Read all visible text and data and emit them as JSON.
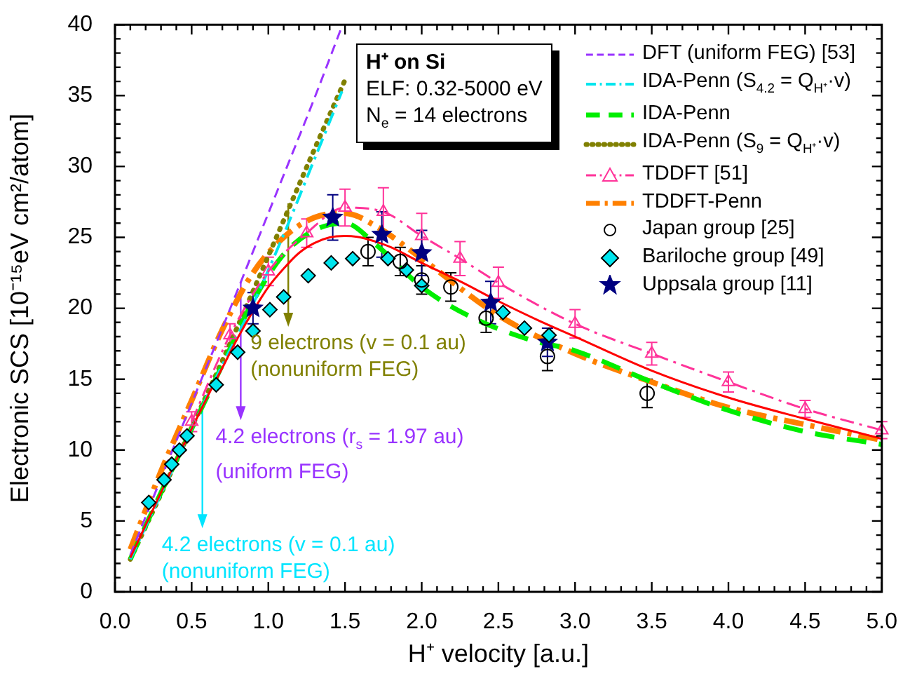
{
  "chart_data": {
    "type": "line",
    "xlabel": "H⁺ velocity [a.u.]",
    "ylabel": "Electronic SCS [10⁻¹⁵eV cm²/atom]",
    "xlim": [
      0,
      5
    ],
    "ylim": [
      0,
      40
    ],
    "xticks": [
      {
        "value": 0,
        "label": "0.0"
      },
      {
        "value": 0.5,
        "label": "0.5"
      },
      {
        "value": 1,
        "label": "1.0"
      },
      {
        "value": 1.5,
        "label": "1.5"
      },
      {
        "value": 2,
        "label": "2.0"
      },
      {
        "value": 2.5,
        "label": "2.5"
      },
      {
        "value": 3,
        "label": "3.0"
      },
      {
        "value": 3.5,
        "label": "3.5"
      },
      {
        "value": 4,
        "label": "4.0"
      },
      {
        "value": 4.5,
        "label": "4.5"
      },
      {
        "value": 5,
        "label": "5.0"
      }
    ],
    "yticks": [
      0,
      5,
      10,
      15,
      20,
      25,
      30,
      35,
      40
    ],
    "legend": "top right",
    "series": [
      {
        "color": "#ff0000",
        "line_style": "solid",
        "x": [
          0.1,
          0.2,
          0.3,
          0.4,
          0.5,
          0.6,
          0.7,
          0.8,
          0.9,
          1.0,
          1.1,
          1.2,
          1.3,
          1.4,
          1.5,
          1.6,
          1.7,
          1.8,
          2.0,
          2.25,
          2.5,
          2.75,
          3.0,
          3.5,
          4.0,
          4.5,
          5.0
        ],
        "values": [
          2.4,
          4.7,
          7.0,
          9.3,
          11.5,
          13.7,
          15.8,
          17.9,
          19.8,
          21.5,
          22.8,
          23.9,
          24.6,
          25.0,
          25.1,
          25.0,
          24.7,
          24.3,
          23.2,
          21.9,
          20.5,
          19.2,
          18.0,
          15.6,
          13.7,
          12.2,
          10.8
        ]
      },
      {
        "name": "DFT (uniform FEG) [53]",
        "color": "#9933ff",
        "line_style": "dashed",
        "x": [
          0.1,
          0.3,
          0.5,
          0.7,
          0.9,
          1.1,
          1.3,
          1.47
        ],
        "values": [
          2.6,
          8.0,
          13.3,
          18.6,
          24.0,
          29.4,
          34.8,
          39.6
        ]
      },
      {
        "name": "IDA-Penn (S$_{4.2}$ = Q$_{H⁺}$·v)",
        "color": "#00e5ee",
        "line_style": "dashdot",
        "x": [
          0.1,
          0.3,
          0.5,
          0.7,
          0.9,
          1.1,
          1.3,
          1.48
        ],
        "values": [
          2.3,
          6.9,
          11.5,
          16.0,
          20.3,
          25.2,
          30.5,
          35.3
        ]
      },
      {
        "name": "IDA-Penn",
        "color": "#00ee00",
        "line_style": "dashed",
        "x": [
          0.1,
          0.3,
          0.5,
          0.7,
          0.9,
          1.1,
          1.3,
          1.5,
          1.7,
          2.0,
          2.3,
          2.7,
          3.0,
          3.5,
          4.0,
          4.5,
          5.0
        ],
        "values": [
          2.3,
          7.0,
          11.5,
          16.0,
          20.5,
          23.8,
          25.5,
          26.0,
          24.5,
          21.5,
          19.5,
          17.8,
          17.0,
          14.8,
          12.8,
          11.3,
          10.4
        ]
      },
      {
        "name": "IDA-Penn (S$_{9}$ = Q$_{H⁺}$·v)",
        "color": "#808000",
        "line_style": "dotted",
        "x": [
          0.1,
          0.3,
          0.5,
          0.7,
          0.9,
          1.1,
          1.3,
          1.5
        ],
        "values": [
          2.3,
          6.9,
          11.6,
          16.3,
          21.2,
          26.2,
          31.2,
          36.1
        ]
      },
      {
        "name": "TDDFT [51]",
        "color": "#ff3399",
        "line_style": "dashdot",
        "marker": "triangle",
        "x": [
          0.5,
          0.75,
          1.0,
          1.25,
          1.5,
          1.75,
          2.0,
          2.25,
          2.5,
          3.0,
          3.5,
          4.0,
          4.5,
          5.0
        ],
        "values": [
          12.0,
          18.1,
          22.6,
          25.3,
          27.1,
          26.8,
          25.1,
          23.5,
          21.8,
          18.9,
          16.8,
          14.8,
          12.9,
          11.4
        ],
        "errors": [
          0.7,
          0.8,
          1.0,
          1.0,
          1.3,
          1.7,
          1.6,
          1.2,
          1.1,
          1.0,
          0.8,
          0.7,
          0.6,
          0.6
        ]
      },
      {
        "name": "TDDFT-Penn",
        "color": "#ff8000",
        "line_style": "dashdot",
        "x": [
          0.1,
          0.3,
          0.5,
          0.7,
          0.9,
          1.1,
          1.3,
          1.5,
          1.7,
          2.0,
          2.5,
          3.0,
          3.5,
          4.0,
          4.5,
          5.0
        ],
        "values": [
          3.0,
          8.5,
          13.5,
          18.5,
          22.5,
          25.0,
          26.4,
          26.7,
          25.8,
          23.5,
          19.5,
          16.8,
          14.8,
          13.0,
          11.8,
          10.7
        ]
      },
      {
        "type": "scatter",
        "name": "Japan group [25]",
        "color": "#000000",
        "marker": "circle",
        "x": [
          1.65,
          1.86,
          2.0,
          2.19,
          2.42,
          2.82,
          3.47
        ],
        "values": [
          24.0,
          23.3,
          22.0,
          21.5,
          19.3,
          16.6,
          14.0
        ],
        "errors": [
          1.0,
          1.0,
          1.0,
          1.0,
          1.0,
          1.0,
          1.0
        ]
      },
      {
        "type": "scatter",
        "name": "Bariloche group [49]",
        "color": "#00e5ee",
        "marker": "diamond",
        "x": [
          0.22,
          0.32,
          0.37,
          0.42,
          0.47,
          0.66,
          0.8,
          0.9,
          1.01,
          1.1,
          1.26,
          1.41,
          1.55,
          1.78,
          1.9,
          2.0,
          2.53,
          2.67,
          2.83
        ],
        "values": [
          6.3,
          7.9,
          9.0,
          10.0,
          11.0,
          14.6,
          16.9,
          18.4,
          19.9,
          20.8,
          22.3,
          23.2,
          23.5,
          23.5,
          22.7,
          21.6,
          19.7,
          18.6,
          18.1
        ]
      },
      {
        "type": "scatter",
        "name": "Uppsala group [11]",
        "color": "#000080",
        "marker": "star",
        "x": [
          0.9,
          1.42,
          1.74,
          2.0,
          2.45,
          2.82
        ],
        "values": [
          20.0,
          26.4,
          25.2,
          23.9,
          20.4,
          17.6
        ],
        "errors": [
          1.1,
          1.6,
          1.6,
          1.6,
          1.5,
          1.0
        ]
      }
    ],
    "annotations": [
      "H⁺ on Si",
      "ELF: 0.32-5000 eV",
      "N$_{e}$ = 14 electrons",
      {
        "text": "9 electrons (v = 0.1 au)\n(nonuniform FEG)",
        "x": 1.13,
        "y": 27.4
      },
      {
        "text": "4.2 electrons (r$_{s}$ = 1.97 au)\n(uniform FEG)",
        "x": 0.82,
        "y": 21.8
      },
      {
        "text": "4.2 electrons (v = 0.1 au)\n(nonuniform FEG)",
        "x": 0.57,
        "y": 12.8
      }
    ]
  }
}
